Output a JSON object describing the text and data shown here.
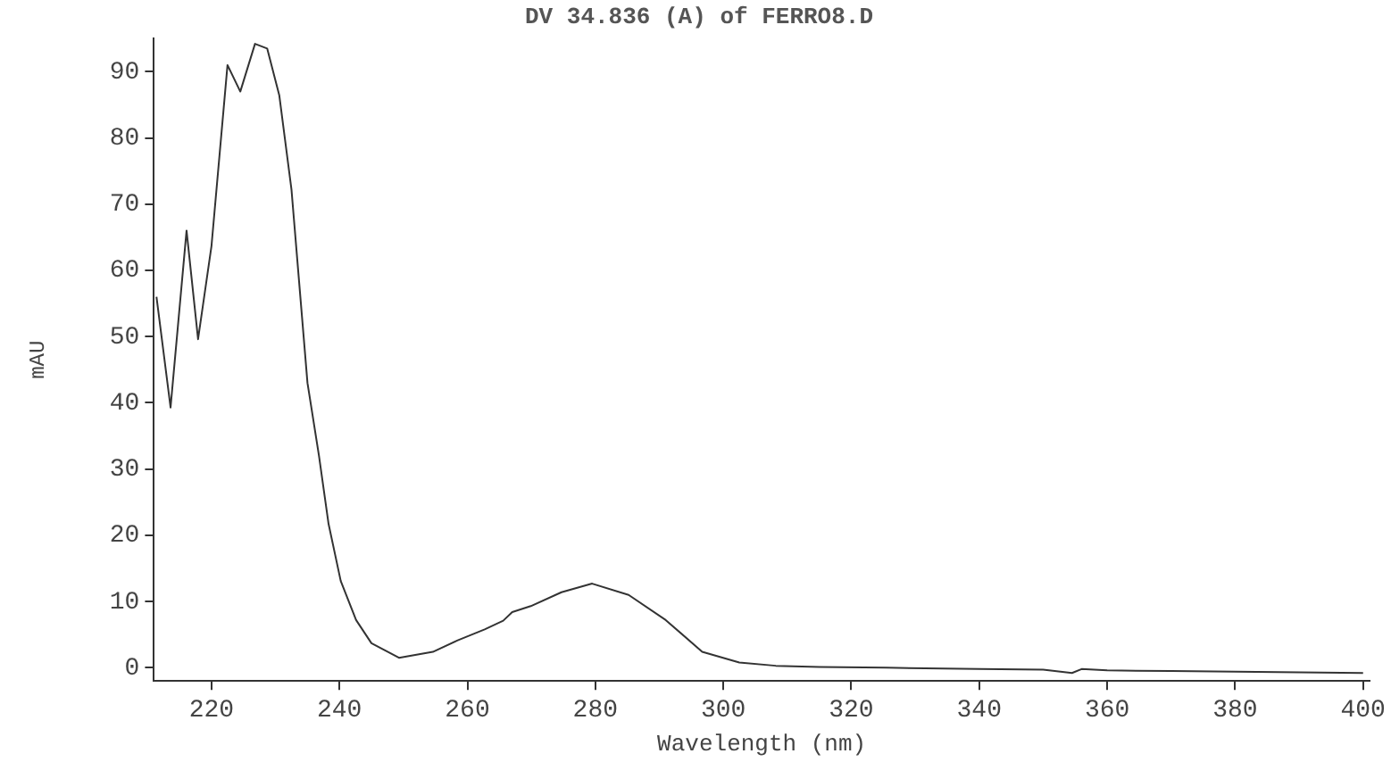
{
  "chart_data": {
    "type": "line",
    "title": "DV 34.836 (A) of FERRO8.D",
    "xlabel": "Wavelength (nm)",
    "ylabel": "mAU",
    "x": [
      211.4,
      213.6,
      216.1,
      217.9,
      220,
      222.5,
      224.5,
      226.8,
      228.7,
      230.6,
      232.5,
      235,
      236.8,
      238.3,
      240.2,
      242.6,
      245,
      249.3,
      254.6,
      258.4,
      262.7,
      265.6,
      267,
      269.9,
      274.7,
      279.5,
      285.2,
      291,
      296.7,
      302.5,
      308.2,
      315,
      325.5,
      340,
      350,
      354.5,
      356,
      360,
      370,
      380,
      390,
      400
    ],
    "series": [
      {
        "color": "#333333",
        "values": [
          56,
          39.3,
          66,
          49.6,
          63.7,
          91,
          87,
          94.2,
          93.5,
          86.4,
          72.2,
          43,
          32,
          21.7,
          13.1,
          7.2,
          3.7,
          1.5,
          2.4,
          4.1,
          5.8,
          7.1,
          8.4,
          9.3,
          11.4,
          12.7,
          11,
          7.2,
          2.4,
          0.8,
          0.3,
          0.1,
          0,
          -0.2,
          -0.3,
          -0.8,
          -0.2,
          -0.4,
          -0.5,
          -0.6,
          -0.7,
          -0.8
        ]
      }
    ],
    "xlim": [
      211,
      401
    ],
    "xticks": [
      220,
      240,
      260,
      280,
      300,
      320,
      340,
      360,
      380,
      400
    ],
    "ylim": [
      -2,
      95
    ],
    "yticks": [
      0,
      10,
      20,
      30,
      40,
      50,
      60,
      70,
      80,
      90
    ],
    "grid": false,
    "legend": false,
    "marker": "none",
    "line_style": "solid"
  }
}
